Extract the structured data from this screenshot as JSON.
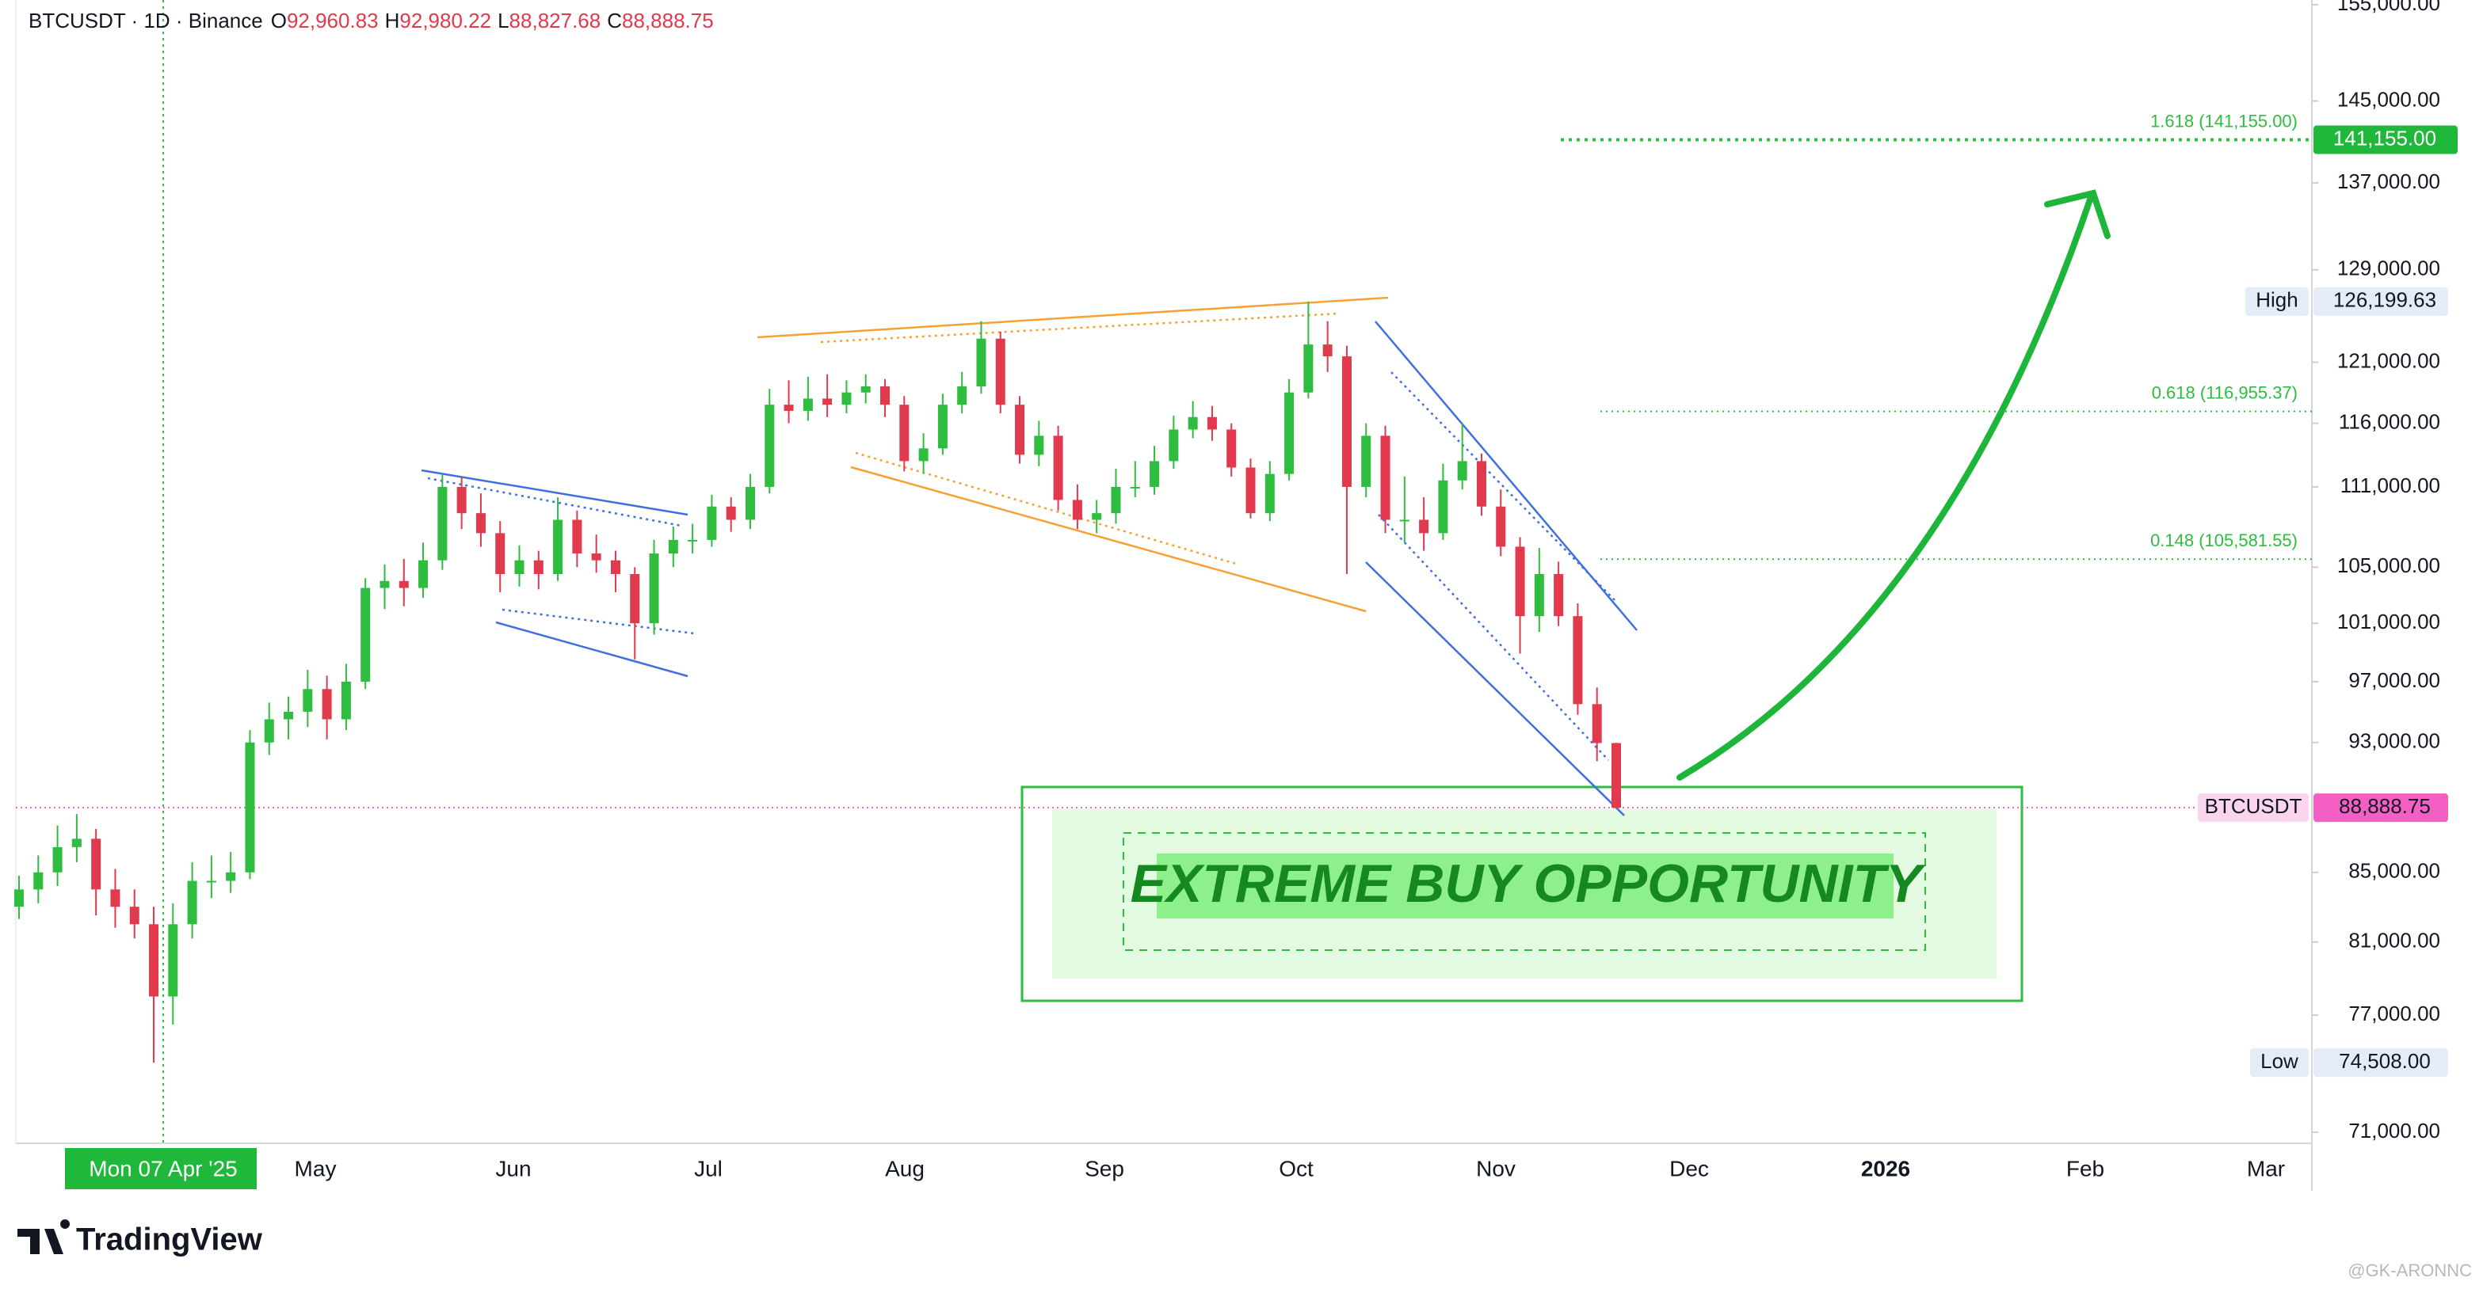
{
  "chart_data": {
    "type": "candlestick",
    "title": "BTCUSDT · 1D · Binance",
    "ohlc_header": [
      {
        "key": "O",
        "value": "92,960.83"
      },
      {
        "key": "H",
        "value": "92,980.22"
      },
      {
        "key": "L",
        "value": "88,827.68"
      },
      {
        "key": "C",
        "value": "88,888.75"
      }
    ],
    "up_color": "#2ebd3f",
    "down_color": "#e03a4c",
    "log_scale": true,
    "ylim": [
      70460,
      155500
    ],
    "yticks": [
      {
        "value": 155000,
        "label": "155,000.00"
      },
      {
        "value": 145000,
        "label": "145,000.00"
      },
      {
        "value": 137000,
        "label": "137,000.00"
      },
      {
        "value": 129000,
        "label": "129,000.00"
      },
      {
        "value": 121000,
        "label": "121,000.00"
      },
      {
        "value": 116000,
        "label": "116,000.00"
      },
      {
        "value": 111000,
        "label": "111,000.00"
      },
      {
        "value": 105000,
        "label": "105,000.00"
      },
      {
        "value": 101000,
        "label": "101,000.00"
      },
      {
        "value": 97000,
        "label": "97,000.00"
      },
      {
        "value": 93000,
        "label": "93,000.00"
      },
      {
        "value": 85000,
        "label": "85,000.00"
      },
      {
        "value": 81000,
        "label": "81,000.00"
      },
      {
        "value": 77000,
        "label": "77,000.00"
      },
      {
        "value": 71000,
        "label": "71,000.00"
      }
    ],
    "x_labels": [
      "Mon 07 Apr '25",
      "May",
      "Jun",
      "Jul",
      "Aug",
      "Sep",
      "Oct",
      "Nov",
      "Dec",
      "2026",
      "Feb",
      "Mar"
    ],
    "candles": [
      [
        83000,
        84800,
        82300,
        84000
      ],
      [
        84000,
        86000,
        83200,
        85000
      ],
      [
        85000,
        87800,
        84200,
        86500
      ],
      [
        86500,
        88500,
        85600,
        87000
      ],
      [
        87000,
        87600,
        82500,
        84000
      ],
      [
        84000,
        85200,
        81800,
        83000
      ],
      [
        83000,
        84000,
        81200,
        82000
      ],
      [
        82000,
        83000,
        74508,
        78000
      ],
      [
        78000,
        83200,
        76500,
        82000
      ],
      [
        82000,
        85600,
        81200,
        84500
      ],
      [
        84500,
        86000,
        83500,
        84500
      ],
      [
        84500,
        86200,
        83800,
        85000
      ],
      [
        85000,
        93800,
        84600,
        93000
      ],
      [
        93000,
        95600,
        92200,
        94500
      ],
      [
        94500,
        96000,
        93200,
        95000
      ],
      [
        95000,
        97800,
        94000,
        96500
      ],
      [
        96500,
        97400,
        93200,
        94500
      ],
      [
        94500,
        98200,
        93800,
        97000
      ],
      [
        97000,
        104200,
        96500,
        103500
      ],
      [
        103500,
        105200,
        102000,
        104000
      ],
      [
        104000,
        105600,
        102200,
        103500
      ],
      [
        103500,
        106800,
        102800,
        105500
      ],
      [
        105500,
        112000,
        104800,
        111000
      ],
      [
        111000,
        111800,
        107800,
        109000
      ],
      [
        109000,
        110500,
        106500,
        107500
      ],
      [
        107500,
        108400,
        103200,
        104500
      ],
      [
        104500,
        106600,
        103600,
        105500
      ],
      [
        105500,
        106200,
        103400,
        104500
      ],
      [
        104500,
        110200,
        104000,
        108500
      ],
      [
        108500,
        109200,
        105000,
        106000
      ],
      [
        106000,
        107400,
        104600,
        105500
      ],
      [
        105500,
        106200,
        103200,
        104500
      ],
      [
        104500,
        105000,
        98500,
        101000
      ],
      [
        101000,
        107000,
        100200,
        106000
      ],
      [
        106000,
        108000,
        105000,
        107000
      ],
      [
        107000,
        108200,
        106000,
        107000
      ],
      [
        107000,
        110400,
        106500,
        109500
      ],
      [
        109500,
        110200,
        107600,
        108500
      ],
      [
        108500,
        112000,
        107800,
        111000
      ],
      [
        111000,
        118800,
        110500,
        117500
      ],
      [
        117500,
        119500,
        116000,
        117000
      ],
      [
        117000,
        119800,
        116200,
        118000
      ],
      [
        118000,
        120000,
        116500,
        117500
      ],
      [
        117500,
        119500,
        116800,
        118500
      ],
      [
        118500,
        120000,
        117600,
        119000
      ],
      [
        119000,
        119600,
        116500,
        117500
      ],
      [
        117500,
        118200,
        112200,
        113000
      ],
      [
        113000,
        115200,
        112000,
        114000
      ],
      [
        114000,
        118400,
        113500,
        117500
      ],
      [
        117500,
        120200,
        116800,
        119000
      ],
      [
        119000,
        124500,
        118400,
        123000
      ],
      [
        123000,
        123600,
        116800,
        117500
      ],
      [
        117500,
        118200,
        112800,
        113500
      ],
      [
        113500,
        116200,
        112600,
        115000
      ],
      [
        115000,
        115800,
        109200,
        110000
      ],
      [
        110000,
        111200,
        107800,
        108500
      ],
      [
        108500,
        110000,
        107500,
        109000
      ],
      [
        109000,
        112400,
        108200,
        111000
      ],
      [
        111000,
        113000,
        110200,
        111000
      ],
      [
        111000,
        114200,
        110400,
        113000
      ],
      [
        113000,
        116600,
        112400,
        115500
      ],
      [
        115500,
        117800,
        114800,
        116500
      ],
      [
        116500,
        117400,
        114600,
        115500
      ],
      [
        115500,
        116000,
        111800,
        112500
      ],
      [
        112500,
        113200,
        108600,
        109000
      ],
      [
        109000,
        113000,
        108400,
        112000
      ],
      [
        112000,
        119600,
        111500,
        118500
      ],
      [
        118500,
        126199.63,
        118000,
        122500
      ],
      [
        122500,
        124500,
        120200,
        121500
      ],
      [
        121500,
        122400,
        104500,
        111000
      ],
      [
        111000,
        116000,
        110200,
        115000
      ],
      [
        115000,
        115800,
        107500,
        108500
      ],
      [
        108500,
        111800,
        106800,
        108500
      ],
      [
        108500,
        110200,
        106200,
        107500
      ],
      [
        107500,
        112800,
        107000,
        111500
      ],
      [
        111500,
        116000,
        110800,
        113000
      ],
      [
        113000,
        113600,
        108800,
        109500
      ],
      [
        109500,
        110800,
        105800,
        106500
      ],
      [
        106500,
        107200,
        98900,
        101500
      ],
      [
        101500,
        106400,
        100400,
        104500
      ],
      [
        104500,
        105400,
        100800,
        101500
      ],
      [
        101500,
        102400,
        94800,
        95500
      ],
      [
        95500,
        96600,
        91800,
        92960.83
      ],
      [
        92960.83,
        92980.22,
        88827.68,
        88888.75
      ]
    ],
    "high_marker": {
      "label": "High",
      "value": 126199.63,
      "value_label": "126,199.63"
    },
    "low_marker": {
      "label": "Low",
      "value": 74508,
      "value_label": "74,508.00"
    },
    "price_marker": {
      "symbol": "BTCUSDT",
      "value": 88888.75,
      "value_label": "88,888.75"
    },
    "fib_levels": [
      {
        "label": "1.618 (141,155.00)",
        "value": 141155,
        "axis_label": "141,155.00"
      },
      {
        "label": "0.618 (116,955.37)",
        "value": 116955.37
      },
      {
        "label": "0.148 (105,581.55)",
        "value": 105581.55
      }
    ],
    "annotation": "EXTREME BUY OPPORTUNITY",
    "brand": "TradingView",
    "watermark": "@GK-ARONNC"
  }
}
